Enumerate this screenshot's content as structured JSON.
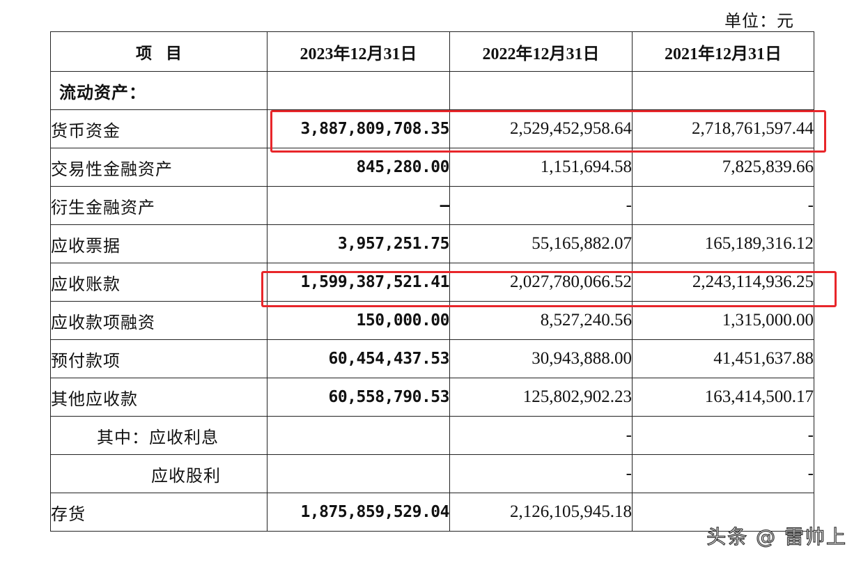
{
  "unit_label": "单位：元",
  "table": {
    "headers": [
      "项目",
      "2023年12月31日",
      "2022年12月31日",
      "2021年12月31日"
    ],
    "rows": [
      {
        "label": "流动资产：",
        "values": [
          "",
          "",
          ""
        ]
      },
      {
        "label": "货币资金",
        "values": [
          "3,887,809,708.35",
          "2,529,452,958.64",
          "2,718,761,597.44"
        ]
      },
      {
        "label": "交易性金融资产",
        "values": [
          "845,280.00",
          "1,151,694.58",
          "7,825,839.66"
        ]
      },
      {
        "label": "衍生金融资产",
        "values": [
          "–",
          "-",
          "-"
        ]
      },
      {
        "label": "应收票据",
        "values": [
          "3,957,251.75",
          "55,165,882.07",
          "165,189,316.12"
        ]
      },
      {
        "label": "应收账款",
        "values": [
          "1,599,387,521.41",
          "2,027,780,066.52",
          "2,243,114,936.25"
        ]
      },
      {
        "label": "应收款项融资",
        "values": [
          "150,000.00",
          "8,527,240.56",
          "1,315,000.00"
        ]
      },
      {
        "label": "预付款项",
        "values": [
          "60,454,437.53",
          "30,943,888.00",
          "41,451,637.88"
        ]
      },
      {
        "label": "其他应收款",
        "values": [
          "60,558,790.53",
          "125,802,902.23",
          "163,414,500.17"
        ]
      },
      {
        "label": "其中：应收利息",
        "values": [
          "",
          "-",
          "-"
        ]
      },
      {
        "label": "应收股利",
        "values": [
          "",
          "-",
          "-"
        ]
      },
      {
        "label": "存货",
        "values": [
          "1,875,859,529.04",
          "2,126,105,945.18",
          ""
        ]
      }
    ]
  },
  "watermark_text": "头条 @ 雷帅上",
  "colors": {
    "highlight_border": "#e8262a",
    "table_border": "#222222"
  }
}
